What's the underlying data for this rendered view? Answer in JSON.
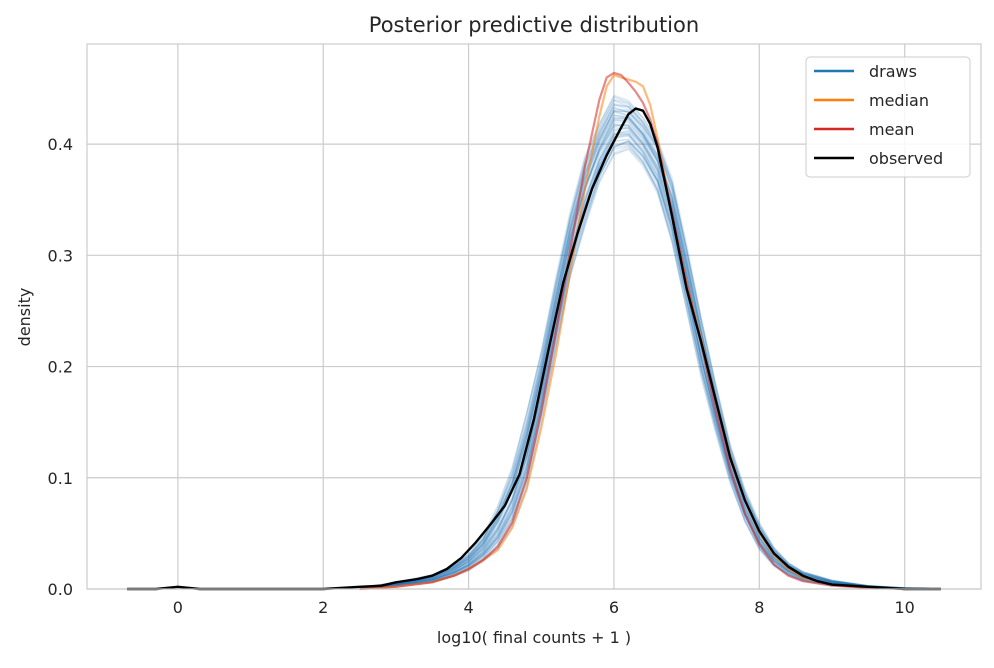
{
  "chart_data": {
    "type": "line",
    "title": "Posterior predictive distribution",
    "xlabel": "log10( final counts + 1 )",
    "ylabel": "density",
    "xlim": [
      -1.25,
      11.05
    ],
    "ylim": [
      0,
      0.49
    ],
    "xticks": [
      0,
      2,
      4,
      6,
      8,
      10
    ],
    "xtick_labels": [
      "0",
      "2",
      "4",
      "6",
      "8",
      "10"
    ],
    "yticks": [
      0.0,
      0.1,
      0.2,
      0.3,
      0.4
    ],
    "ytick_labels": [
      "0.0",
      "0.1",
      "0.2",
      "0.3",
      "0.4"
    ],
    "grid": true,
    "legend": {
      "placement": "top-right",
      "entries": [
        {
          "label": "draws",
          "color": "#1f77b4"
        },
        {
          "label": "median",
          "color": "#ff7f0e"
        },
        {
          "label": "mean",
          "color": "#d62728"
        },
        {
          "label": "observed",
          "color": "#000000"
        }
      ]
    },
    "series": [
      {
        "name": "observed",
        "color": "#000000",
        "x": [
          -0.7,
          -0.3,
          0.0,
          0.3,
          0.7,
          1.0,
          1.5,
          2.0,
          2.5,
          2.8,
          3.0,
          3.3,
          3.5,
          3.7,
          3.9,
          4.1,
          4.3,
          4.5,
          4.7,
          4.9,
          5.1,
          5.3,
          5.5,
          5.7,
          5.9,
          6.1,
          6.2,
          6.3,
          6.4,
          6.5,
          6.6,
          6.8,
          7.0,
          7.2,
          7.4,
          7.6,
          7.8,
          8.0,
          8.2,
          8.4,
          8.6,
          8.8,
          9.0,
          9.5,
          10.0,
          10.5
        ],
        "y": [
          0.0,
          0.0,
          0.002,
          0.0,
          0.0,
          0.0,
          0.0,
          0.0,
          0.002,
          0.003,
          0.006,
          0.009,
          0.012,
          0.018,
          0.028,
          0.042,
          0.058,
          0.075,
          0.103,
          0.153,
          0.215,
          0.275,
          0.32,
          0.36,
          0.39,
          0.415,
          0.427,
          0.432,
          0.43,
          0.418,
          0.397,
          0.335,
          0.27,
          0.222,
          0.17,
          0.118,
          0.08,
          0.052,
          0.032,
          0.02,
          0.012,
          0.007,
          0.004,
          0.002,
          0.0,
          0.0
        ]
      },
      {
        "name": "median",
        "color": "#ff7f0e",
        "x": [
          2.5,
          3.0,
          3.5,
          3.8,
          4.0,
          4.2,
          4.4,
          4.6,
          4.8,
          5.0,
          5.2,
          5.4,
          5.6,
          5.8,
          5.9,
          6.0,
          6.1,
          6.2,
          6.3,
          6.4,
          6.5,
          6.6,
          6.8,
          7.0,
          7.2,
          7.4,
          7.6,
          7.8,
          8.0,
          8.2,
          8.4,
          8.6,
          9.0,
          9.5,
          10.0
        ],
        "y": [
          0.0,
          0.002,
          0.006,
          0.012,
          0.018,
          0.026,
          0.035,
          0.055,
          0.09,
          0.145,
          0.21,
          0.285,
          0.36,
          0.425,
          0.452,
          0.462,
          0.46,
          0.458,
          0.456,
          0.452,
          0.435,
          0.405,
          0.335,
          0.275,
          0.225,
          0.17,
          0.12,
          0.08,
          0.05,
          0.03,
          0.018,
          0.01,
          0.004,
          0.001,
          0.0
        ]
      },
      {
        "name": "mean",
        "color": "#d62728",
        "x": [
          2.5,
          3.0,
          3.5,
          3.8,
          4.0,
          4.2,
          4.4,
          4.6,
          4.8,
          5.0,
          5.2,
          5.4,
          5.6,
          5.8,
          5.9,
          6.0,
          6.1,
          6.2,
          6.3,
          6.4,
          6.5,
          6.6,
          6.8,
          7.0,
          7.2,
          7.4,
          7.6,
          7.8,
          8.0,
          8.2,
          8.4,
          8.6,
          9.0,
          9.5,
          10.0
        ],
        "y": [
          0.0,
          0.002,
          0.006,
          0.012,
          0.018,
          0.026,
          0.038,
          0.06,
          0.1,
          0.16,
          0.23,
          0.305,
          0.38,
          0.44,
          0.46,
          0.464,
          0.462,
          0.455,
          0.447,
          0.437,
          0.422,
          0.4,
          0.338,
          0.275,
          0.22,
          0.16,
          0.108,
          0.068,
          0.04,
          0.022,
          0.012,
          0.007,
          0.003,
          0.001,
          0.0
        ]
      }
    ],
    "draws_band": {
      "name": "draws",
      "color": "#1f77b4",
      "x": [
        2.5,
        3.0,
        3.5,
        3.8,
        4.0,
        4.2,
        4.4,
        4.6,
        4.8,
        5.0,
        5.2,
        5.4,
        5.6,
        5.8,
        6.0,
        6.2,
        6.4,
        6.6,
        6.8,
        7.0,
        7.2,
        7.4,
        7.6,
        7.8,
        8.0,
        8.2,
        8.4,
        8.6,
        9.0,
        9.5,
        10.0,
        10.5
      ],
      "lower": [
        0.0,
        0.003,
        0.006,
        0.011,
        0.016,
        0.024,
        0.035,
        0.055,
        0.09,
        0.15,
        0.215,
        0.28,
        0.325,
        0.365,
        0.39,
        0.395,
        0.38,
        0.355,
        0.31,
        0.25,
        0.19,
        0.14,
        0.095,
        0.06,
        0.035,
        0.02,
        0.012,
        0.007,
        0.003,
        0.001,
        0.0,
        0.0
      ],
      "upper": [
        0.001,
        0.006,
        0.013,
        0.022,
        0.032,
        0.048,
        0.075,
        0.11,
        0.16,
        0.215,
        0.28,
        0.34,
        0.39,
        0.42,
        0.445,
        0.44,
        0.425,
        0.405,
        0.37,
        0.31,
        0.245,
        0.185,
        0.13,
        0.09,
        0.06,
        0.038,
        0.024,
        0.016,
        0.008,
        0.003,
        0.001,
        0.0
      ],
      "count": 60
    }
  }
}
